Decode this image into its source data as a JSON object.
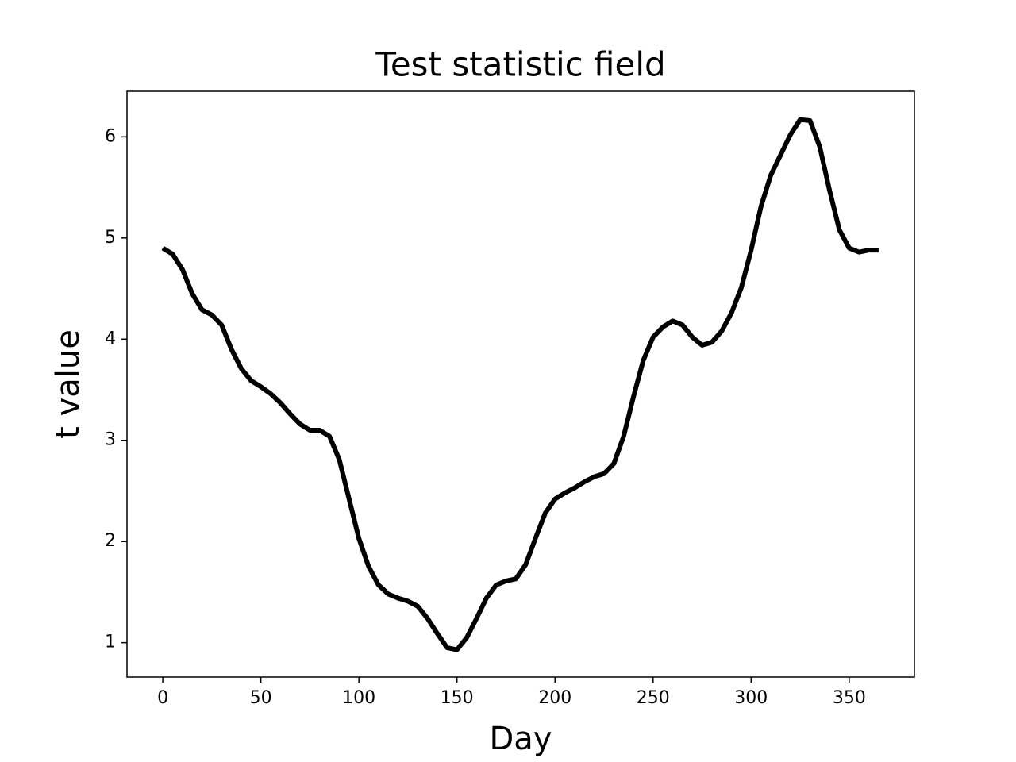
{
  "chart_data": {
    "type": "line",
    "title": "Test statistic field",
    "x_label": "Day",
    "y_label": "t value",
    "x": [
      0,
      5,
      10,
      15,
      20,
      25,
      30,
      35,
      40,
      45,
      50,
      55,
      60,
      65,
      70,
      75,
      80,
      85,
      90,
      95,
      100,
      105,
      110,
      115,
      120,
      125,
      130,
      135,
      140,
      145,
      150,
      155,
      160,
      165,
      170,
      175,
      180,
      185,
      190,
      195,
      200,
      205,
      210,
      215,
      220,
      225,
      230,
      235,
      240,
      245,
      250,
      255,
      260,
      265,
      270,
      275,
      280,
      285,
      290,
      295,
      300,
      305,
      310,
      315,
      320,
      325,
      330,
      335,
      340,
      345,
      350,
      355,
      360,
      365
    ],
    "series": [
      {
        "color": "#000000",
        "values": [
          4.9,
          4.84,
          4.69,
          4.45,
          4.29,
          4.24,
          4.14,
          3.9,
          3.71,
          3.59,
          3.53,
          3.46,
          3.37,
          3.26,
          3.16,
          3.1,
          3.1,
          3.04,
          2.81,
          2.42,
          2.03,
          1.75,
          1.57,
          1.48,
          1.44,
          1.41,
          1.36,
          1.24,
          1.09,
          0.95,
          0.93,
          1.05,
          1.24,
          1.44,
          1.57,
          1.61,
          1.63,
          1.77,
          2.03,
          2.28,
          2.42,
          2.48,
          2.53,
          2.59,
          2.64,
          2.67,
          2.77,
          3.04,
          3.43,
          3.79,
          4.02,
          4.12,
          4.18,
          4.14,
          4.02,
          3.94,
          3.97,
          4.08,
          4.26,
          4.51,
          4.88,
          5.31,
          5.62,
          5.82,
          6.02,
          6.17,
          6.16,
          5.9,
          5.47,
          5.08,
          4.9,
          4.86,
          4.88,
          4.88
        ]
      }
    ],
    "xlim": [
      -18.25,
      383.25
    ],
    "ylim": [
      0.66,
      6.45
    ],
    "xticks": [
      0,
      50,
      100,
      150,
      200,
      250,
      300,
      350
    ],
    "yticks": [
      1,
      2,
      3,
      4,
      5,
      6
    ]
  }
}
